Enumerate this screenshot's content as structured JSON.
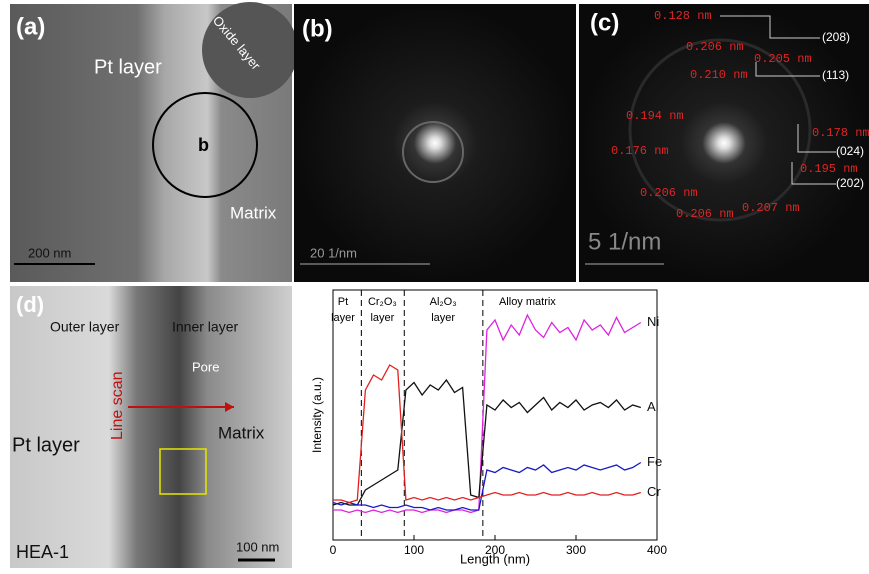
{
  "panels": {
    "a": {
      "label": "(a)",
      "pt_layer": "Pt layer",
      "oxide_layer": "Oxide layer",
      "circle": "b",
      "matrix": "Matrix",
      "scale": "200 nm"
    },
    "b": {
      "label": "(b)",
      "scale": "20 1/nm"
    },
    "c": {
      "label": "(c)",
      "scale": "5 1/nm",
      "spacings": [
        "0.128 nm",
        "0.206 nm",
        "0.205 nm",
        "0.210 nm",
        "0.194 nm",
        "0.178 nm",
        "0.176 nm",
        "0.195 nm",
        "0.206 nm",
        "0.206 nm",
        "0.207 nm"
      ],
      "indices": [
        "(208)",
        "(113)",
        "(024)",
        "(202)"
      ]
    },
    "d": {
      "label": "(d)",
      "outer_layer": "Outer layer",
      "inner_layer": "Inner layer",
      "pore": "Pore",
      "line_scan": "Line scan",
      "pt_layer": "Pt layer",
      "matrix": "Matrix",
      "sample": "HEA-1",
      "scale": "100 nm"
    }
  },
  "chart_data": {
    "type": "line",
    "xlabel": "Length (nm)",
    "ylabel": "Intensity (a.u.)",
    "xlim": [
      0,
      400
    ],
    "xticks": [
      0,
      100,
      200,
      300,
      400
    ],
    "ylim": [
      0,
      100
    ],
    "boundaries": [
      35,
      88,
      185
    ],
    "regions": [
      [
        "Pt",
        "layer"
      ],
      [
        "Cr₂O₃",
        "layer"
      ],
      [
        "Al₂O₃",
        "layer"
      ],
      [
        "Alloy matrix"
      ]
    ],
    "x": [
      0,
      10,
      20,
      30,
      40,
      50,
      60,
      70,
      80,
      90,
      100,
      110,
      120,
      130,
      140,
      150,
      160,
      170,
      180,
      190,
      200,
      210,
      220,
      230,
      240,
      250,
      260,
      270,
      280,
      290,
      300,
      310,
      320,
      330,
      340,
      350,
      360,
      370,
      380
    ],
    "series": [
      {
        "name": "Ni",
        "color": "#e020e0",
        "values": [
          12,
          12,
          11,
          12,
          11,
          12,
          11,
          12,
          11,
          12,
          12,
          11,
          12,
          12,
          11,
          12,
          12,
          11,
          12,
          84,
          88,
          80,
          86,
          82,
          90,
          84,
          81,
          87,
          83,
          85,
          80,
          88,
          84,
          86,
          82,
          89,
          83,
          85,
          87
        ]
      },
      {
        "name": "Al",
        "color": "#111111",
        "values": [
          14,
          15,
          14,
          14,
          20,
          22,
          24,
          26,
          28,
          60,
          63,
          58,
          62,
          60,
          64,
          59,
          61,
          18,
          17,
          54,
          52,
          56,
          53,
          55,
          51,
          54,
          57,
          52,
          55,
          53,
          56,
          52,
          54,
          55,
          53,
          56,
          52,
          54,
          53
        ]
      },
      {
        "name": "Fe",
        "color": "#1818c8",
        "values": [
          15,
          14,
          15,
          14,
          14,
          13,
          14,
          13,
          13,
          14,
          13,
          13,
          12,
          13,
          12,
          12,
          13,
          12,
          12,
          28,
          27,
          29,
          28,
          27,
          29,
          28,
          30,
          27,
          28,
          29,
          28,
          30,
          29,
          28,
          29,
          30,
          28,
          29,
          31
        ]
      },
      {
        "name": "Cr",
        "color": "#e02020",
        "values": [
          16,
          16,
          15,
          16,
          60,
          66,
          64,
          70,
          68,
          16,
          17,
          16,
          17,
          16,
          17,
          16,
          17,
          16,
          17,
          18,
          19,
          18,
          18,
          19,
          18,
          18,
          19,
          18,
          18,
          19,
          18,
          18,
          19,
          18,
          18,
          19,
          18,
          18,
          19
        ]
      }
    ]
  }
}
